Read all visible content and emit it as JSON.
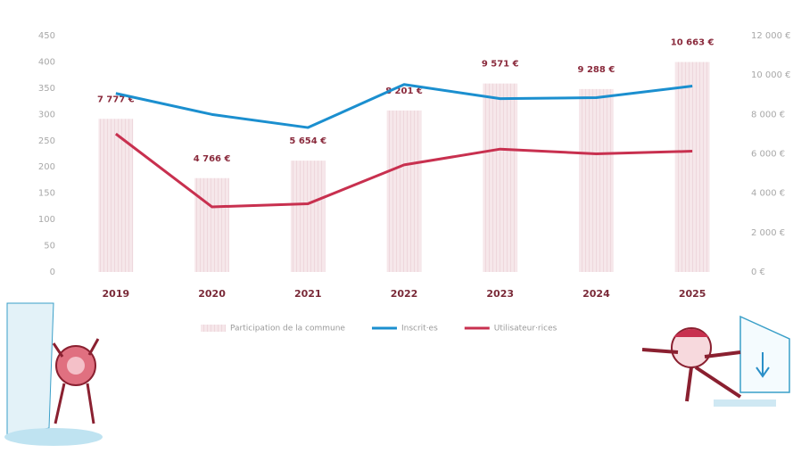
{
  "chart_data": {
    "type": "bar-line",
    "categories": [
      "2019",
      "2020",
      "2021",
      "2022",
      "2023",
      "2024",
      "2025"
    ],
    "series": [
      {
        "name": "Participation de la commune",
        "type": "bar",
        "axis": "y2",
        "color": "#f2dde2",
        "values": [
          7777,
          4766,
          5654,
          8201,
          9571,
          9288,
          10663
        ],
        "value_labels": [
          "7 777 €",
          "4 766 €",
          "5 654 €",
          "8 201 €",
          "9 571 €",
          "9 288 €",
          "10 663 €"
        ]
      },
      {
        "name": "Inscrit·es",
        "type": "line",
        "color": "#1b8fcf",
        "values": [
          340,
          300,
          275,
          357,
          330,
          332,
          354
        ]
      },
      {
        "name": "Utilisateur·rices",
        "type": "line",
        "color": "#c8304f",
        "values": [
          263,
          124,
          130,
          204,
          234,
          225,
          230
        ]
      }
    ],
    "ylim": [
      0,
      450
    ],
    "yticks": [
      0,
      50,
      100,
      150,
      200,
      250,
      300,
      350,
      400,
      450
    ],
    "y2lim": [
      0,
      12000
    ],
    "y2ticks": [
      {
        "value": 0,
        "label": "0 €"
      },
      {
        "value": 2000,
        "label": "2 000 €"
      },
      {
        "value": 4000,
        "label": "4 000 €"
      },
      {
        "value": 6000,
        "label": "6 000 €"
      },
      {
        "value": 8000,
        "label": "8 000 €"
      },
      {
        "value": 10000,
        "label": "10 000 €"
      },
      {
        "value": 12000,
        "label": "12 000 €"
      }
    ]
  }
}
